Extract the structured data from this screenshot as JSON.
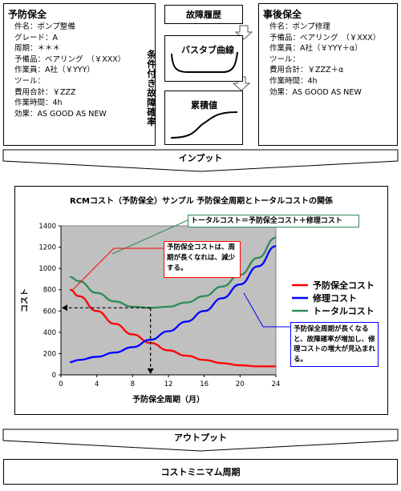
{
  "left_box": {
    "title": "予防保全",
    "lines": [
      "件名：ポンプ整備",
      "グレード：A",
      "周期：＊＊＊",
      "予備品：ベアリング　（￥XXX）",
      "作業員：A社（￥YYY）",
      "ツール：",
      "費用合計：￥ZZZ",
      "作業時間：4h",
      "効果：AS GOOD AS NEW"
    ]
  },
  "right_box": {
    "title": "事後保全",
    "lines": [
      "件名：ポンプ修理",
      "予備品：ベアリング　（￥XXX）",
      "作業員：A社（￥YYY＋α）",
      "ツール：",
      "費用合計：￥ZZZ＋α",
      "作業時間：4h",
      "効果：AS GOOD AS NEW"
    ]
  },
  "center": {
    "header": "故障履歴",
    "vertical_label": "条件付き故障確率",
    "panel1_label": "バスタブ曲線",
    "panel2_label": "累積値"
  },
  "input_label": "インプット",
  "output_label": "アウトプット",
  "result_label": "コストミニマム周期",
  "callouts": {
    "total": "トータルコスト＝予防保全コスト＋修理コスト",
    "preventive": "予防保全コストは、周期が長くなれは、減少する。",
    "repair": "予防保全周期が長くなると、故障確率が増加し、修理コストの増大が見込まれる。"
  },
  "colors": {
    "preventive": "#ff0000",
    "repair": "#0000ff",
    "total": "#2e8b57",
    "plot_bg": "#c0c0c0"
  },
  "chart_data": {
    "type": "line",
    "title": "RCMコスト（予防保全）サンプル 予防保全周期とトータルコストの関係",
    "xlabel": "予防保全周期（月）",
    "ylabel": "コスト",
    "xlim": [
      0,
      24
    ],
    "ylim": [
      0,
      1400
    ],
    "xticks": [
      0,
      4,
      8,
      12,
      16,
      20,
      24
    ],
    "yticks": [
      0,
      200,
      400,
      600,
      800,
      1000,
      1200,
      1400
    ],
    "grid": false,
    "legend_position": "right",
    "optimum": {
      "x": 10,
      "y": 630
    },
    "x": [
      1,
      2,
      4,
      6,
      8,
      10,
      12,
      14,
      16,
      18,
      20,
      22,
      24
    ],
    "series": [
      {
        "name": "予防保全コスト",
        "color": "#ff0000",
        "values": [
          800,
          740,
          600,
          480,
          380,
          300,
          230,
          180,
          140,
          110,
          90,
          80,
          80
        ]
      },
      {
        "name": "修理コスト",
        "color": "#0000ff",
        "values": [
          120,
          140,
          170,
          210,
          260,
          330,
          410,
          500,
          600,
          720,
          850,
          1020,
          1210
        ]
      },
      {
        "name": "トータルコスト",
        "color": "#2e8b57",
        "values": [
          920,
          880,
          770,
          690,
          640,
          630,
          640,
          680,
          740,
          830,
          940,
          1100,
          1290
        ]
      }
    ]
  }
}
